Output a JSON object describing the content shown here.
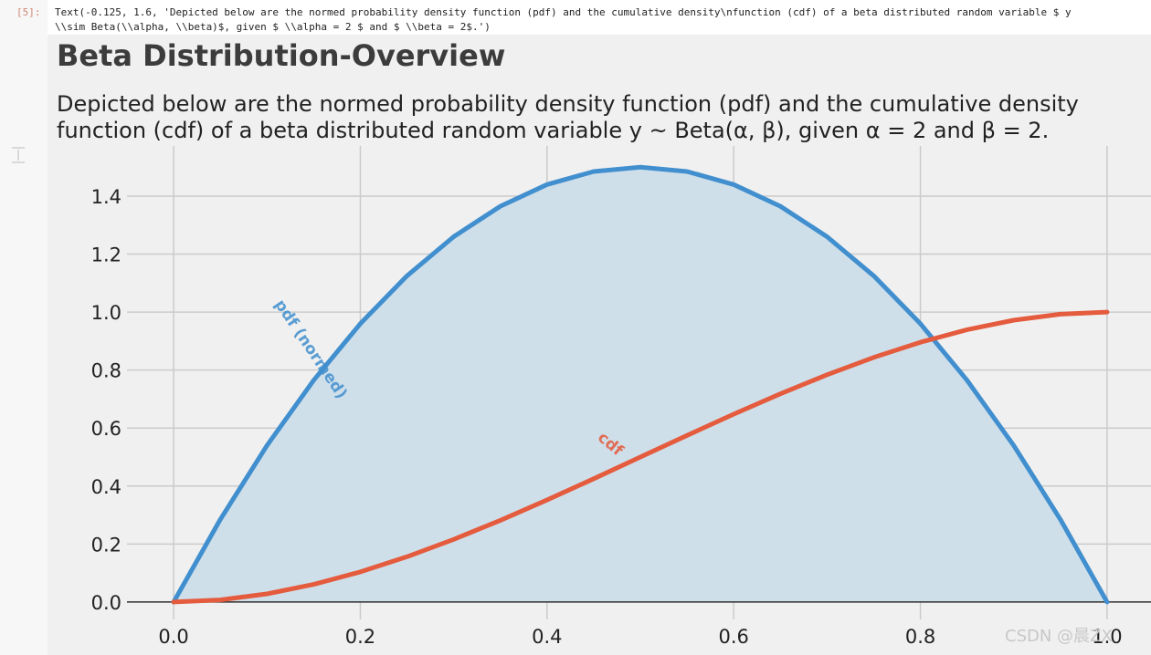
{
  "cell": {
    "prompt": "[5]:",
    "output": [
      "Text(-0.125, 1.6, 'Depicted below are the normed probability density function (pdf) and the cumulative density\\nfunction (cdf) of a beta distributed random variable $ y",
      "\\\\sim Beta(\\\\alpha, \\\\beta)$, given $ \\\\alpha = 2 $ and $ \\\\beta = 2$.')"
    ]
  },
  "chart_data": {
    "type": "line",
    "title": "Beta Distribution-Overview",
    "subtitle": [
      "Depicted below are the normed probability density function (pdf) and the cumulative density",
      "function (cdf) of a beta distributed random variable y ~ Beta(α, β), given α = 2 and β = 2."
    ],
    "x": [
      0,
      0.05,
      0.1,
      0.15,
      0.2,
      0.25,
      0.3,
      0.35,
      0.4,
      0.45,
      0.5,
      0.55,
      0.6,
      0.65,
      0.7,
      0.75,
      0.8,
      0.85,
      0.9,
      0.95,
      1
    ],
    "series": [
      {
        "name": "pdf (normed)",
        "color": "#418fce",
        "fill": true,
        "fill_color": "#cfdfea",
        "values": [
          0,
          0.285,
          0.54,
          0.765,
          0.96,
          1.125,
          1.26,
          1.365,
          1.44,
          1.485,
          1.5,
          1.485,
          1.44,
          1.365,
          1.26,
          1.125,
          0.96,
          0.765,
          0.54,
          0.285,
          0
        ]
      },
      {
        "name": "cdf",
        "color": "#e45b3d",
        "fill": false,
        "values": [
          0,
          0.00725,
          0.028,
          0.06075,
          0.104,
          0.15625,
          0.216,
          0.28175,
          0.352,
          0.42525,
          0.5,
          0.57475,
          0.648,
          0.71825,
          0.784,
          0.84375,
          0.896,
          0.93925,
          0.972,
          0.99275,
          1
        ]
      }
    ],
    "xlim": [
      -0.05,
      1.05
    ],
    "ylim": [
      -0.06,
      1.573
    ],
    "xticks": [
      {
        "value": 0,
        "label": "0.0"
      },
      0.2,
      0.4,
      0.6,
      0.8,
      {
        "value": 1,
        "label": "1.0"
      }
    ],
    "yticks": [
      {
        "value": 0,
        "label": "0.0"
      },
      0.2,
      0.4,
      0.6,
      0.8,
      {
        "value": 1,
        "label": "1.0"
      },
      1.2,
      1.4
    ],
    "grid": true
  },
  "watermark": "CSDN @晨ZX"
}
